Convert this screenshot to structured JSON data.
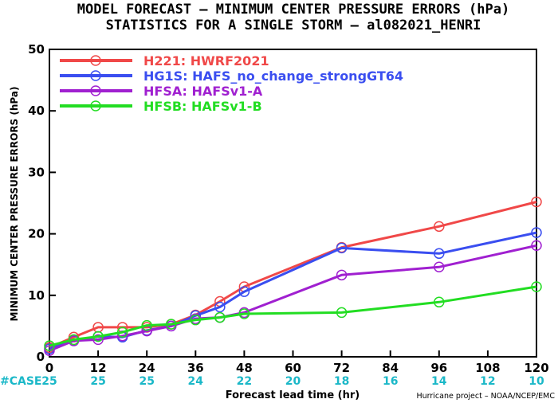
{
  "title_line1": "MODEL FORECAST – MINIMUM CENTER PRESSURE ERRORS (hPa)",
  "title_line2": "STATISTICS FOR A SINGLE STORM – al082021_HENRI",
  "credit": "Hurricane project – NOAA/NCEP/EMC",
  "case_label": "#CASE",
  "case_color": "#1bb8c8",
  "chart_data": {
    "type": "line",
    "title": "MODEL FORECAST – MINIMUM CENTER PRESSURE ERRORS (hPa)",
    "subtitle": "STATISTICS FOR A SINGLE STORM – al082021_HENRI",
    "xlabel": "Forecast lead time (hr)",
    "ylabel": "MINIMUM CENTER PRESSURE ERRORS (hPa)",
    "xlim": [
      0,
      120
    ],
    "ylim": [
      0,
      50
    ],
    "xticks": [
      0,
      12,
      24,
      36,
      48,
      60,
      72,
      84,
      96,
      108,
      120
    ],
    "yticks": [
      0,
      10,
      20,
      30,
      40,
      50
    ],
    "grid": false,
    "legend_position": "top-left",
    "case_counts": [
      {
        "x": 0,
        "n": "25"
      },
      {
        "x": 12,
        "n": "25"
      },
      {
        "x": 24,
        "n": "25"
      },
      {
        "x": 36,
        "n": "24"
      },
      {
        "x": 48,
        "n": "22"
      },
      {
        "x": 60,
        "n": "20"
      },
      {
        "x": 72,
        "n": "18"
      },
      {
        "x": 84,
        "n": "16"
      },
      {
        "x": 96,
        "n": "14"
      },
      {
        "x": 108,
        "n": "12"
      },
      {
        "x": 120,
        "n": "10"
      }
    ],
    "series": [
      {
        "name": "H221: HWRF2021",
        "color": "#f04848",
        "points": [
          [
            0,
            1.5
          ],
          [
            6,
            3.2
          ],
          [
            12,
            4.8
          ],
          [
            18,
            4.8
          ],
          [
            24,
            4.8
          ],
          [
            30,
            5.3
          ],
          [
            36,
            6.8
          ],
          [
            42,
            9.0
          ],
          [
            48,
            11.4
          ],
          [
            72,
            17.8
          ],
          [
            96,
            21.2
          ],
          [
            120,
            25.2
          ]
        ]
      },
      {
        "name": "HG1S: HAFS_no_change_strongGT64",
        "color": "#3a4ef0",
        "points": [
          [
            0,
            1.3
          ],
          [
            6,
            2.6
          ],
          [
            12,
            3.3
          ],
          [
            18,
            3.2
          ],
          [
            24,
            4.3
          ],
          [
            30,
            5.0
          ],
          [
            36,
            6.7
          ],
          [
            42,
            8.1
          ],
          [
            48,
            10.6
          ],
          [
            72,
            17.7
          ],
          [
            96,
            16.8
          ],
          [
            120,
            20.2
          ]
        ]
      },
      {
        "name": "HFSA: HAFSv1-A",
        "color": "#a020d0",
        "points": [
          [
            0,
            1.0
          ],
          [
            6,
            2.6
          ],
          [
            12,
            2.8
          ],
          [
            18,
            3.4
          ],
          [
            24,
            4.2
          ],
          [
            30,
            5.0
          ],
          [
            36,
            6.2
          ],
          [
            42,
            6.4
          ],
          [
            48,
            7.2
          ],
          [
            72,
            13.3
          ],
          [
            96,
            14.6
          ],
          [
            120,
            18.1
          ]
        ]
      },
      {
        "name": "HFSB: HAFSv1-B",
        "color": "#22dd22",
        "points": [
          [
            0,
            1.8
          ],
          [
            6,
            2.8
          ],
          [
            12,
            3.3
          ],
          [
            18,
            4.0
          ],
          [
            24,
            5.1
          ],
          [
            30,
            5.3
          ],
          [
            36,
            6.0
          ],
          [
            42,
            6.4
          ],
          [
            48,
            7.0
          ],
          [
            72,
            7.2
          ],
          [
            96,
            8.9
          ],
          [
            120,
            11.4
          ]
        ]
      }
    ]
  }
}
